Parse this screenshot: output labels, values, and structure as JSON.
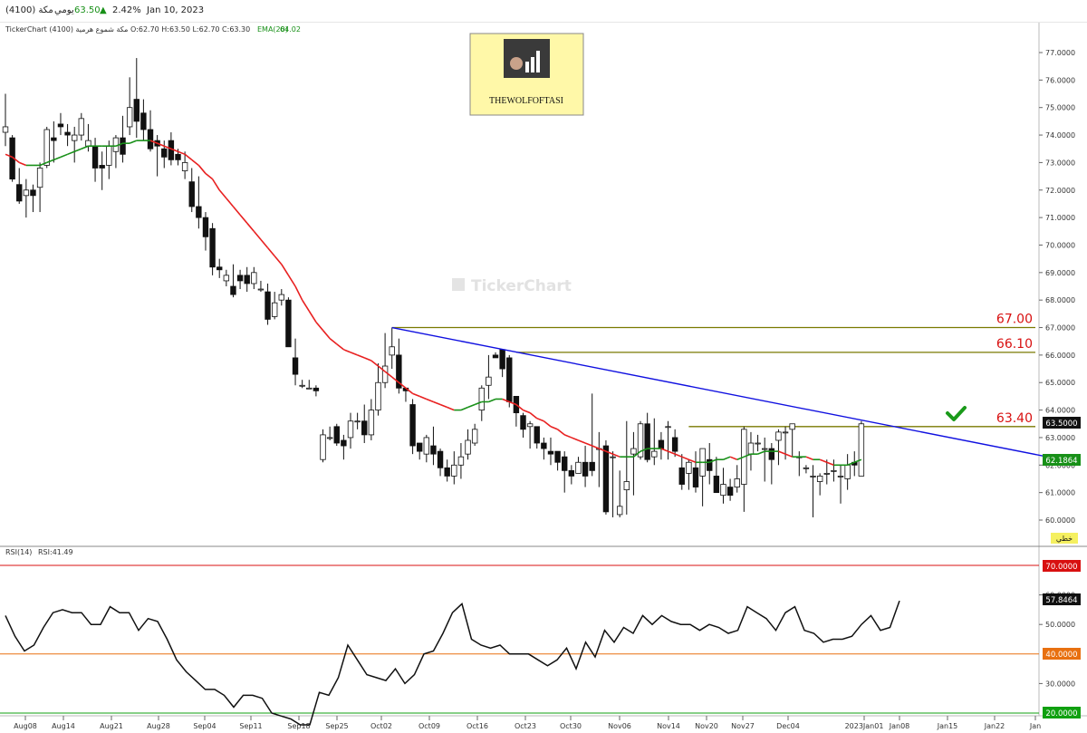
{
  "header": {
    "symbol_label": "(4100) مكة",
    "period": "يومي",
    "last_price": "63.50",
    "change_pct": "2.42%",
    "date": "Jan 10, 2023"
  },
  "legend": {
    "ohlc": "TickerChart مكة شموع هرمية (4100) O:62.70 H:63.50 L:62.70 C:63.30",
    "ema_label": "EMA(20)",
    "ema_value": "64.02",
    "rsi_label": "RSI(14)",
    "rsi_value": "RSI:41.49"
  },
  "watermark": "TickerChart",
  "logo_text": "THEWOLFOFTASI",
  "price_badges": {
    "last": "63.5000",
    "ema": "62.1864",
    "mode": "خطي"
  },
  "rsi_badges": {
    "last": "57.8464",
    "upper": "70.0000",
    "middle": "40.0000",
    "lower": "20.0000"
  },
  "colors": {
    "ema_down": "#e82020",
    "ema_up": "#189018",
    "trendline": "#1010e0",
    "resistance": "#7a7a00",
    "rsi_upper": "#d81010",
    "rsi_middle": "#e87010",
    "rsi_lower": "#10a010",
    "check": "#1a9a1a",
    "logo_bg": "#fff8a8"
  },
  "chart_data": {
    "type": "candlestick",
    "x_tick_labels": [
      "Aug08",
      "Aug14",
      "Aug21",
      "Aug28",
      "Sep04",
      "Sep11",
      "Sep18",
      "Sep25",
      "Oct02",
      "Oct09",
      "Oct16",
      "Oct23",
      "Oct30",
      "Nov06",
      "Nov14",
      "Nov20",
      "Nov27",
      "Dec04",
      "2023Jan01",
      "Jan08",
      "Jan15",
      "Jan22",
      "Jan"
    ],
    "y_tick_labels": [
      "77.0000",
      "76.0000",
      "75.0000",
      "74.0000",
      "73.0000",
      "72.0000",
      "71.0000",
      "70.0000",
      "69.0000",
      "68.0000",
      "67.0000",
      "66.0000",
      "65.0000",
      "64.0000",
      "63.0000",
      "62.0000",
      "61.0000",
      "60.0000"
    ],
    "ylim": [
      59.5,
      78.0
    ],
    "candles": [
      [
        74.1,
        74.3,
        75.5,
        73.6
      ],
      [
        73.9,
        72.4,
        74.0,
        72.3
      ],
      [
        72.2,
        71.6,
        72.8,
        71.5
      ],
      [
        71.8,
        72.0,
        72.4,
        71.0
      ],
      [
        72.0,
        71.8,
        72.2,
        71.2
      ],
      [
        72.1,
        72.8,
        73.0,
        71.2
      ],
      [
        72.9,
        74.2,
        74.3,
        72.8
      ],
      [
        73.9,
        73.8,
        74.5,
        73.0
      ],
      [
        74.4,
        74.3,
        74.8,
        74.0
      ],
      [
        74.1,
        74.0,
        74.4,
        73.6
      ],
      [
        73.8,
        74.0,
        74.3,
        73.0
      ],
      [
        74.0,
        74.6,
        74.8,
        73.8
      ],
      [
        73.6,
        73.8,
        74.4,
        73.4
      ],
      [
        73.6,
        72.8,
        73.9,
        72.3
      ],
      [
        72.9,
        72.8,
        73.4,
        72.0
      ],
      [
        72.9,
        73.6,
        73.8,
        72.4
      ],
      [
        73.4,
        73.9,
        74.0,
        72.8
      ],
      [
        73.9,
        73.3,
        74.7,
        73.0
      ],
      [
        74.3,
        75.0,
        76.1,
        74.0
      ],
      [
        75.3,
        74.5,
        76.8,
        73.9
      ],
      [
        74.8,
        74.2,
        75.3,
        73.8
      ],
      [
        74.2,
        73.5,
        74.9,
        73.4
      ],
      [
        73.8,
        73.6,
        74.0,
        72.5
      ],
      [
        73.5,
        73.2,
        73.8,
        72.8
      ],
      [
        73.8,
        73.1,
        74.1,
        72.9
      ],
      [
        73.3,
        73.1,
        73.5,
        72.9
      ],
      [
        72.7,
        73.0,
        73.4,
        72.4
      ],
      [
        72.3,
        71.4,
        72.8,
        71.2
      ],
      [
        71.4,
        71.0,
        72.5,
        70.6
      ],
      [
        71.0,
        70.3,
        71.2,
        69.8
      ],
      [
        70.6,
        69.2,
        70.8,
        68.9
      ],
      [
        69.2,
        69.1,
        69.5,
        68.8
      ],
      [
        68.7,
        68.9,
        69.1,
        68.5
      ],
      [
        68.5,
        68.2,
        69.3,
        68.1
      ],
      [
        68.9,
        68.7,
        69.1,
        68.4
      ],
      [
        68.9,
        68.6,
        69.2,
        68.3
      ],
      [
        68.6,
        69.0,
        69.2,
        68.4
      ],
      [
        68.4,
        68.4,
        68.7,
        68.3
      ],
      [
        68.3,
        67.3,
        68.6,
        67.1
      ],
      [
        67.4,
        67.9,
        68.3,
        67.3
      ],
      [
        68.0,
        68.2,
        68.4,
        67.8
      ],
      [
        68.0,
        66.3,
        68.1,
        66.3
      ],
      [
        65.9,
        65.3,
        66.6,
        64.9
      ],
      [
        64.9,
        64.9,
        65.1,
        64.8
      ],
      [
        64.8,
        64.8,
        65.1,
        64.8
      ],
      [
        64.8,
        64.7,
        64.9,
        64.5
      ],
      [
        62.2,
        63.1,
        63.3,
        62.1
      ],
      [
        63.0,
        63.0,
        63.4,
        62.9
      ],
      [
        63.4,
        62.8,
        63.5,
        62.7
      ],
      [
        62.9,
        62.7,
        63.1,
        62.2
      ],
      [
        63.0,
        63.6,
        63.9,
        62.6
      ],
      [
        63.6,
        63.6,
        63.9,
        63.3
      ],
      [
        63.6,
        63.1,
        64.2,
        62.8
      ],
      [
        63.1,
        64.0,
        64.4,
        62.9
      ],
      [
        64.0,
        65.0,
        65.7,
        63.8
      ],
      [
        65.0,
        65.6,
        66.8,
        64.8
      ],
      [
        66.0,
        66.3,
        67.0,
        65.5
      ],
      [
        66.0,
        64.8,
        66.6,
        64.6
      ],
      [
        64.8,
        64.7,
        64.8,
        64.3
      ],
      [
        64.2,
        62.7,
        64.4,
        62.4
      ],
      [
        62.8,
        62.5,
        62.8,
        62.2
      ],
      [
        62.4,
        63.0,
        63.1,
        62.1
      ],
      [
        62.7,
        62.4,
        63.4,
        62.0
      ],
      [
        62.5,
        61.9,
        62.6,
        61.6
      ],
      [
        61.9,
        61.6,
        62.2,
        61.4
      ],
      [
        61.6,
        62.0,
        62.5,
        61.3
      ],
      [
        62.0,
        62.3,
        62.8,
        61.5
      ],
      [
        62.4,
        62.9,
        63.3,
        62.2
      ],
      [
        62.8,
        63.3,
        63.5,
        62.7
      ],
      [
        64.0,
        64.8,
        64.9,
        63.6
      ],
      [
        64.9,
        65.2,
        66.0,
        64.4
      ],
      [
        66.0,
        65.9,
        66.1,
        65.9
      ],
      [
        66.2,
        65.5,
        66.2,
        65.2
      ],
      [
        65.9,
        64.3,
        66.0,
        64.1
      ],
      [
        64.5,
        63.9,
        64.5,
        63.4
      ],
      [
        63.8,
        63.3,
        63.9,
        63.0
      ],
      [
        63.4,
        63.5,
        63.6,
        62.6
      ],
      [
        63.4,
        62.8,
        62.9,
        62.6
      ],
      [
        62.8,
        62.6,
        63.0,
        62.2
      ],
      [
        62.5,
        62.4,
        63.0,
        62.0
      ],
      [
        62.5,
        62.1,
        62.5,
        61.8
      ],
      [
        62.3,
        61.8,
        62.5,
        61.0
      ],
      [
        61.8,
        61.6,
        62.0,
        61.3
      ],
      [
        61.7,
        62.1,
        62.3,
        61.7
      ],
      [
        62.1,
        61.6,
        62.7,
        61.2
      ],
      [
        62.1,
        61.8,
        64.6,
        61.6
      ],
      [
        62.6,
        62.6,
        63.2,
        61.2
      ],
      [
        62.7,
        60.3,
        62.9,
        60.2
      ],
      [
        62.3,
        62.3,
        62.5,
        60.1
      ],
      [
        60.2,
        60.5,
        61.8,
        60.1
      ],
      [
        61.1,
        61.4,
        63.6,
        60.2
      ],
      [
        62.4,
        62.6,
        63.2,
        60.9
      ],
      [
        62.3,
        63.5,
        63.6,
        62.2
      ],
      [
        63.5,
        62.2,
        63.9,
        62.1
      ],
      [
        62.3,
        62.5,
        63.7,
        62.0
      ],
      [
        62.9,
        62.6,
        63.2,
        62.2
      ],
      [
        63.4,
        63.4,
        63.6,
        62.2
      ],
      [
        63.0,
        62.5,
        63.3,
        62.3
      ],
      [
        61.9,
        61.3,
        62.4,
        61.1
      ],
      [
        61.7,
        62.1,
        62.2,
        61.1
      ],
      [
        61.9,
        61.2,
        62.5,
        61.0
      ],
      [
        61.6,
        62.6,
        62.4,
        60.5
      ],
      [
        62.2,
        61.8,
        62.8,
        61.3
      ],
      [
        61.6,
        61.0,
        62.3,
        61.0
      ],
      [
        60.9,
        61.3,
        61.9,
        60.6
      ],
      [
        61.2,
        60.9,
        61.5,
        60.7
      ],
      [
        61.2,
        61.5,
        62.0,
        61.0
      ],
      [
        61.3,
        63.3,
        63.4,
        60.3
      ],
      [
        62.4,
        62.8,
        63.2,
        61.8
      ],
      [
        62.8,
        62.8,
        63.1,
        62.5
      ],
      [
        62.6,
        62.6,
        63.0,
        61.4
      ],
      [
        62.6,
        62.2,
        62.8,
        61.3
      ],
      [
        62.9,
        63.2,
        63.3,
        62.0
      ],
      [
        63.2,
        63.2,
        63.4,
        62.2
      ],
      [
        63.3,
        63.5,
        63.5,
        62.3
      ],
      [
        62.3,
        62.3,
        62.5,
        61.6
      ],
      [
        61.9,
        61.9,
        62.0,
        61.7
      ],
      [
        61.6,
        61.6,
        62.0,
        60.1
      ],
      [
        61.4,
        61.6,
        61.7,
        60.9
      ],
      [
        61.7,
        61.7,
        62.2,
        61.3
      ],
      [
        61.8,
        61.8,
        62.2,
        61.4
      ],
      [
        61.6,
        61.6,
        62.0,
        60.6
      ],
      [
        61.5,
        62.0,
        62.4,
        61.1
      ],
      [
        62.1,
        62.0,
        62.5,
        61.6
      ],
      [
        61.6,
        63.5,
        63.6,
        61.6
      ]
    ],
    "ema20_label": "EMA(20)",
    "ema20": [
      73.3,
      73.2,
      73.0,
      72.9,
      72.9,
      72.9,
      73.0,
      73.1,
      73.2,
      73.3,
      73.4,
      73.5,
      73.6,
      73.6,
      73.6,
      73.6,
      73.6,
      73.7,
      73.7,
      73.8,
      73.8,
      73.8,
      73.7,
      73.6,
      73.5,
      73.4,
      73.3,
      73.1,
      72.9,
      72.6,
      72.4,
      72.0,
      71.7,
      71.4,
      71.1,
      70.8,
      70.5,
      70.2,
      69.9,
      69.6,
      69.3,
      68.9,
      68.5,
      68.0,
      67.6,
      67.2,
      66.9,
      66.6,
      66.4,
      66.2,
      66.1,
      66.0,
      65.9,
      65.8,
      65.6,
      65.4,
      65.2,
      65.0,
      64.8,
      64.6,
      64.5,
      64.4,
      64.3,
      64.2,
      64.1,
      64.0,
      64.0,
      64.1,
      64.2,
      64.3,
      64.3,
      64.4,
      64.4,
      64.3,
      64.2,
      64.0,
      63.9,
      63.7,
      63.6,
      63.4,
      63.3,
      63.1,
      63.0,
      62.9,
      62.8,
      62.7,
      62.6,
      62.5,
      62.4,
      62.3,
      62.3,
      62.3,
      62.5,
      62.6,
      62.6,
      62.6,
      62.5,
      62.4,
      62.3,
      62.2,
      62.1,
      62.1,
      62.1,
      62.2,
      62.2,
      62.3,
      62.2,
      62.3,
      62.4,
      62.4,
      62.5,
      62.5,
      62.5,
      62.4,
      62.3,
      62.3,
      62.3,
      62.2,
      62.2,
      62.1,
      62.0,
      62.0,
      62.0,
      62.1,
      62.2
    ],
    "resistance_levels": [
      {
        "label": "67.00",
        "value": 67.0
      },
      {
        "label": "66.10",
        "value": 66.1
      },
      {
        "label": "63.40",
        "value": 63.4
      }
    ],
    "trendline": {
      "from": {
        "index": 56,
        "value": 67.0
      },
      "to": {
        "index": 153,
        "value": 62.2
      }
    },
    "rsi": {
      "label": "RSI(14)",
      "ylim": [
        15,
        75
      ],
      "levels": [
        70,
        40,
        20
      ],
      "y_tick_labels": [
        "60.0000",
        "50.0000",
        "30.0000"
      ],
      "values": [
        53,
        46,
        41,
        43,
        49,
        54,
        55,
        54,
        54,
        50,
        50,
        56,
        54,
        54,
        48,
        52,
        51,
        45,
        38,
        34,
        31,
        28,
        28,
        26,
        22,
        26,
        26,
        25,
        20,
        19,
        18,
        16,
        16,
        27,
        26,
        32,
        43,
        38,
        33,
        32,
        31,
        35,
        30,
        33,
        40,
        41,
        47,
        54,
        57,
        45,
        43,
        42,
        43,
        40,
        40,
        40,
        38,
        36,
        38,
        42,
        35,
        44,
        39,
        48,
        44,
        49,
        47,
        53,
        50,
        53,
        51,
        50,
        50,
        48,
        50,
        49,
        47,
        48,
        56,
        54,
        52,
        48,
        54,
        56,
        48,
        47,
        44,
        45,
        45,
        46,
        50,
        53,
        48,
        49,
        58
      ]
    }
  }
}
